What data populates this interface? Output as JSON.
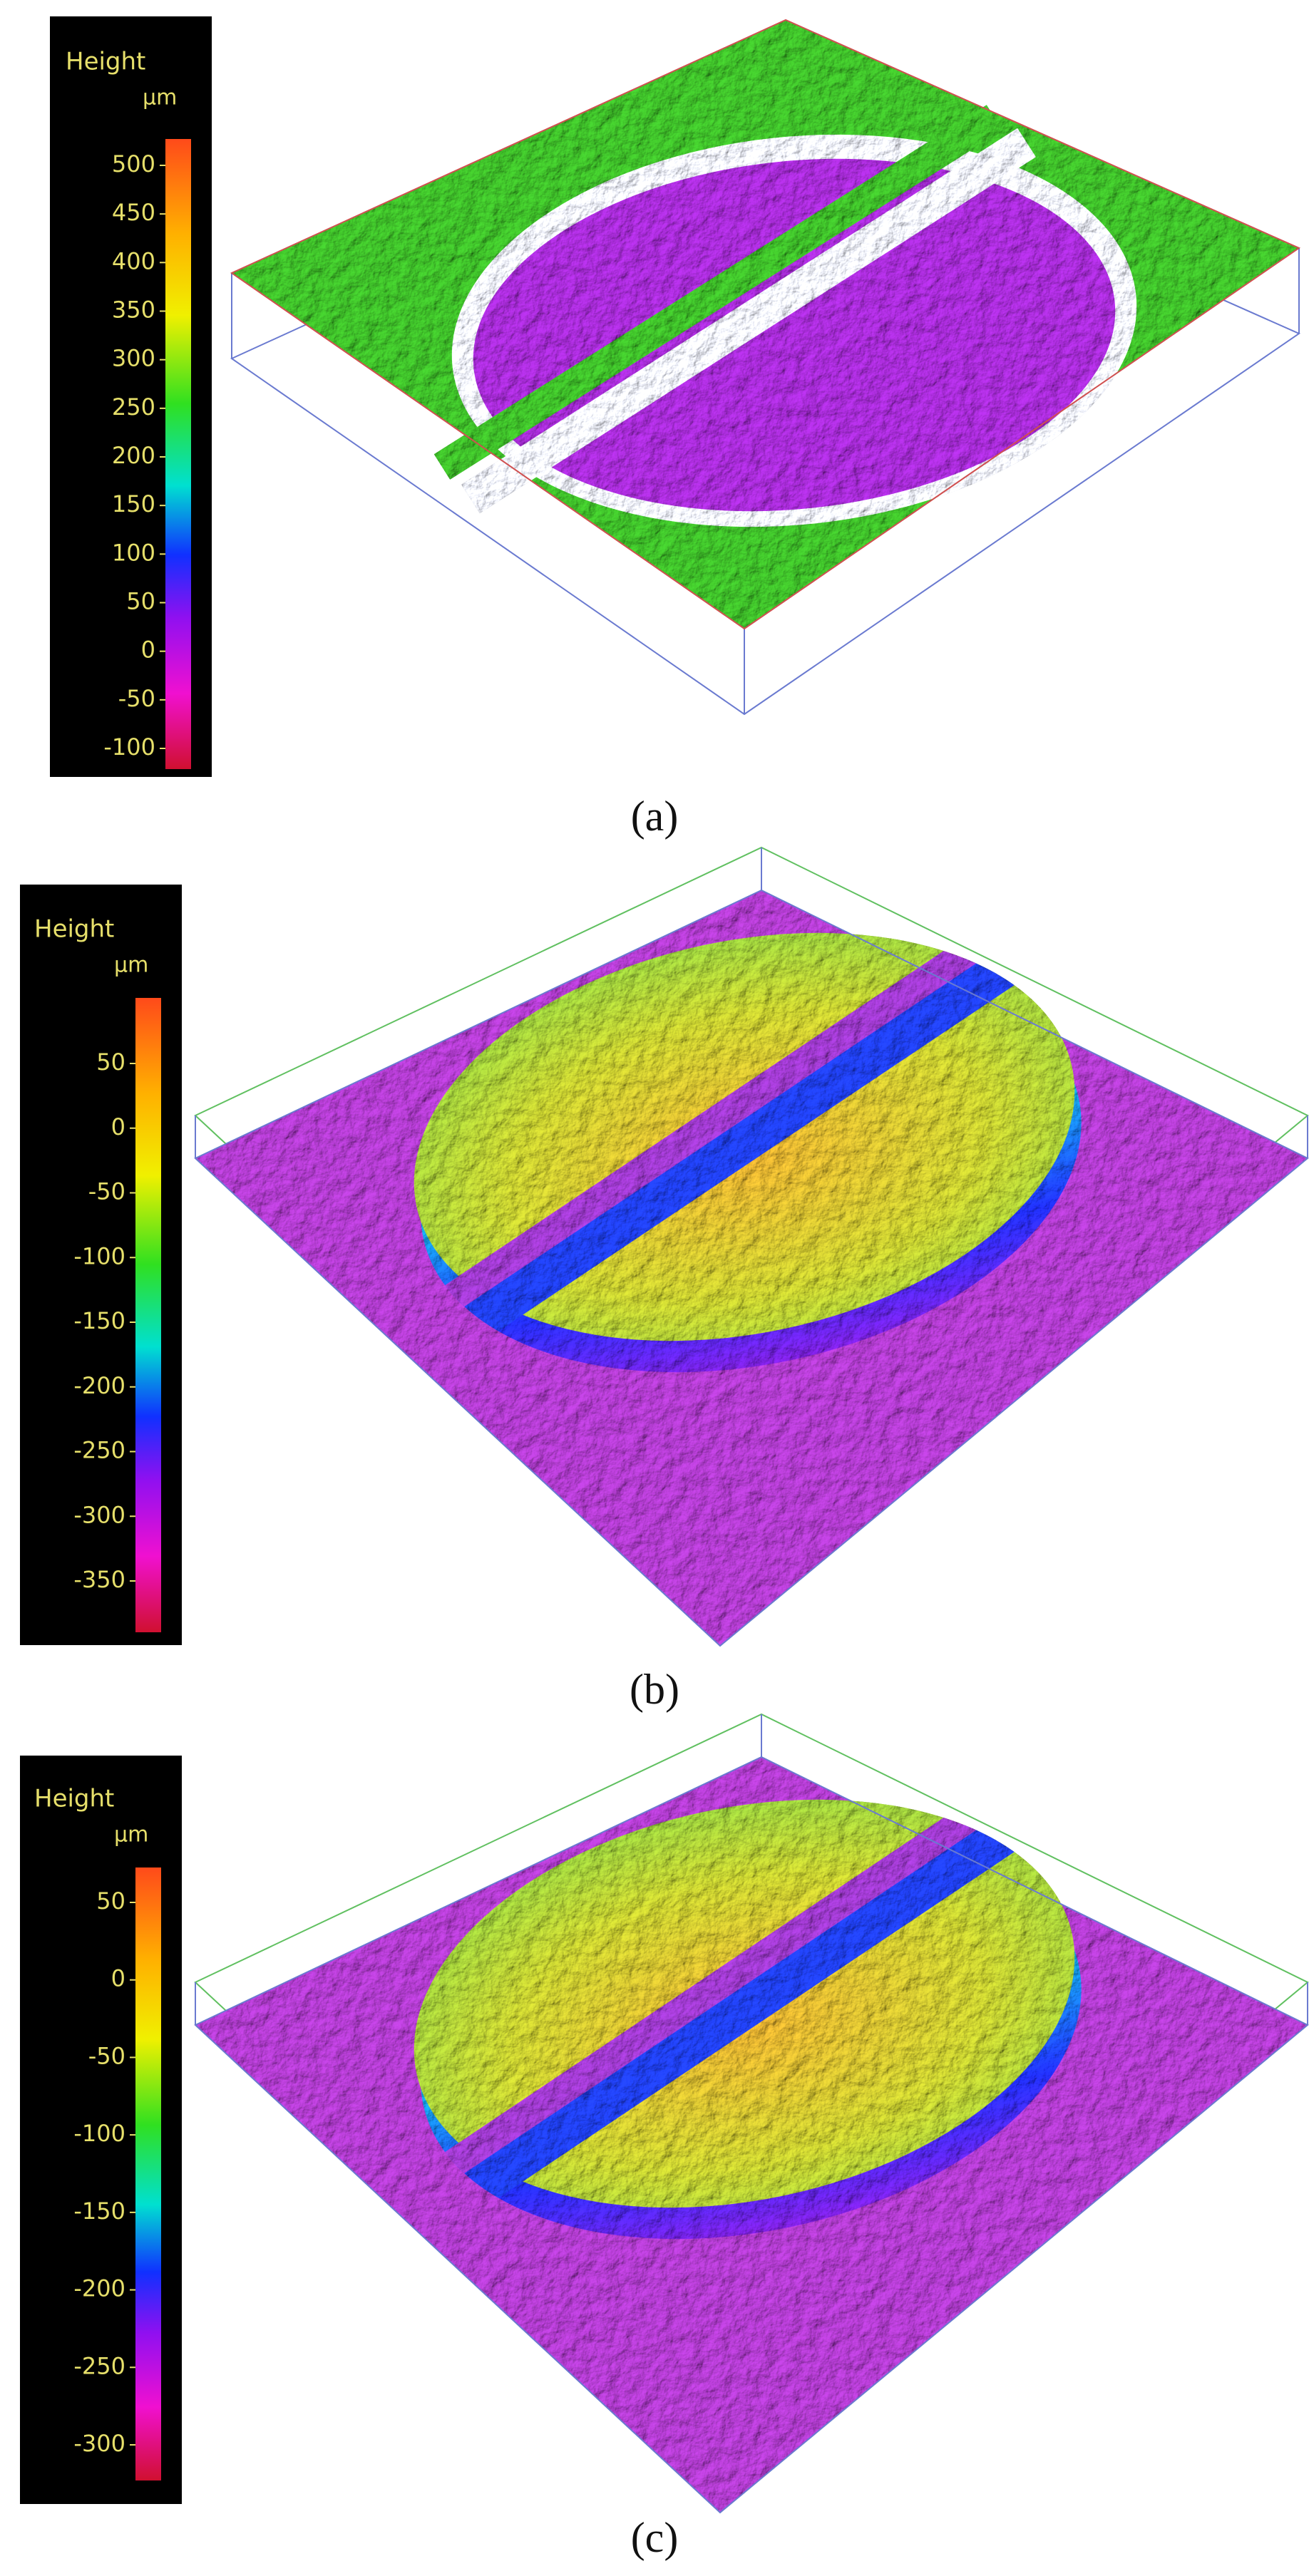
{
  "panels": [
    {
      "caption": "(a)",
      "colorbar": {
        "title": "Height",
        "unit": "µm",
        "ticks": [
          500,
          450,
          400,
          350,
          300,
          250,
          200,
          150,
          100,
          50,
          0,
          -50,
          -100
        ]
      }
    },
    {
      "caption": "(b)",
      "colorbar": {
        "title": "Height",
        "unit": "µm",
        "ticks": [
          50,
          0,
          -50,
          -100,
          -150,
          -200,
          -250,
          -300,
          -350
        ]
      }
    },
    {
      "caption": "(c)",
      "colorbar": {
        "title": "Height",
        "unit": "µm",
        "ticks": [
          50,
          0,
          -50,
          -100,
          -150,
          -200,
          -250,
          -300
        ]
      }
    }
  ]
}
